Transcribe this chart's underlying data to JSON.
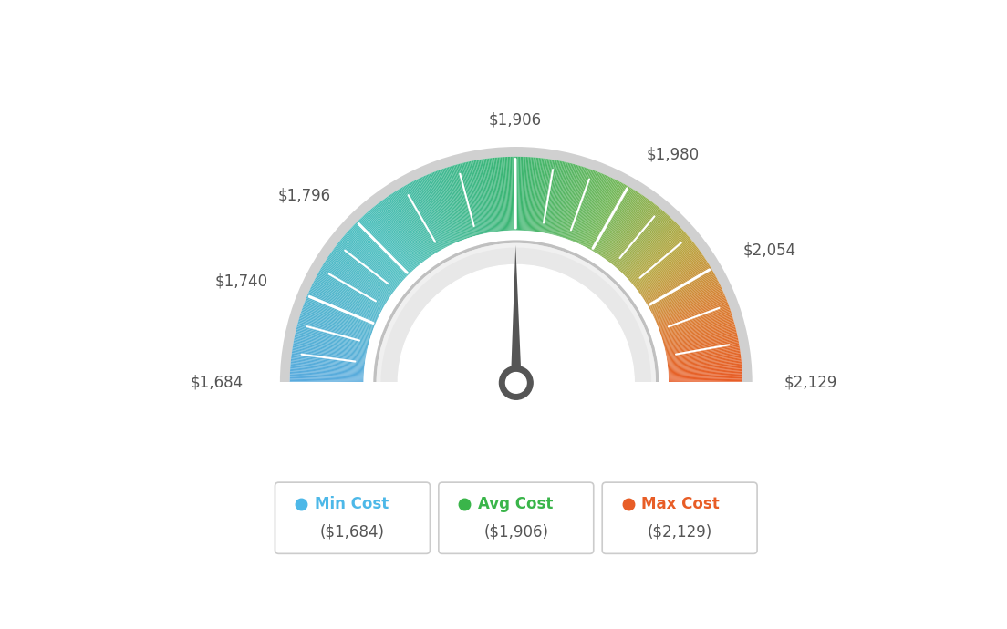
{
  "min_val": 1684,
  "max_val": 2129,
  "avg_val": 1906,
  "tick_labels": [
    "$1,684",
    "$1,740",
    "$1,796",
    "$1,906",
    "$1,980",
    "$2,054",
    "$2,129"
  ],
  "tick_values": [
    1684,
    1740,
    1796,
    1906,
    1980,
    2054,
    2129
  ],
  "legend_min_color": "#4db8e8",
  "legend_avg_color": "#3ab54a",
  "legend_max_color": "#e85d26",
  "legend_min_text": "Min Cost",
  "legend_avg_text": "Avg Cost",
  "legend_max_text": "Max Cost",
  "legend_min_value": "($1,684)",
  "legend_avg_value": "($1,906)",
  "legend_max_value": "($2,129)",
  "background_color": "#ffffff",
  "color_stops": [
    [
      0.0,
      [
        0.35,
        0.67,
        0.87
      ]
    ],
    [
      0.25,
      [
        0.3,
        0.75,
        0.75
      ]
    ],
    [
      0.5,
      [
        0.23,
        0.71,
        0.44
      ]
    ],
    [
      0.65,
      [
        0.45,
        0.72,
        0.35
      ]
    ],
    [
      0.78,
      [
        0.72,
        0.65,
        0.25
      ]
    ],
    [
      0.88,
      [
        0.85,
        0.5,
        0.2
      ]
    ],
    [
      1.0,
      [
        0.91,
        0.36,
        0.15
      ]
    ]
  ]
}
